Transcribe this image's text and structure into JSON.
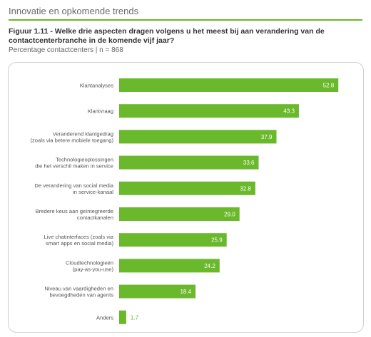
{
  "header": {
    "section_title": "Innovatie en opkomende trends",
    "figure_caption": "Figuur 1.11 - Welke drie aspecten dragen volgens u het meest bij aan verandering van de contactcenterbranche in de komende vijf jaar?",
    "figure_subtitle": "Percentage contactcenters | n = 868"
  },
  "colors": {
    "bar": "#6ab82b",
    "accent_rule": "#6ab82b"
  },
  "chart_data": {
    "type": "bar",
    "orientation": "horizontal",
    "categories": [
      [
        "Klantanalyses"
      ],
      [
        "Klantvraag"
      ],
      [
        "Veranderend klantgedrag",
        "(zoals via betere mobiele toegang)"
      ],
      [
        "Technologieoplossingen",
        "die het verschil maken in service"
      ],
      [
        "De verandering van social media",
        "in service-kanaal"
      ],
      [
        "Bredere keus aan geïntegreerde",
        "contactkanalen"
      ],
      [
        "Live chatinterfaces (zoals via",
        "smart apps en social media)"
      ],
      [
        "Cloudtechnologieën",
        "(pay-as-you-use)"
      ],
      [
        "Niveau van vaardigheden en",
        "bevoegdheden van agents"
      ],
      [
        "Anders"
      ]
    ],
    "values": [
      52.8,
      43.3,
      37.9,
      33.6,
      32.8,
      29.0,
      25.9,
      24.2,
      18.4,
      1.7
    ],
    "value_labels": [
      "52.8",
      "43.3",
      "37.9",
      "33.6",
      "32.8",
      "29.0",
      "25.9",
      "24.2",
      "18.4",
      "1.7"
    ],
    "xlim": [
      0,
      55
    ],
    "grid": false,
    "legend": "none"
  }
}
